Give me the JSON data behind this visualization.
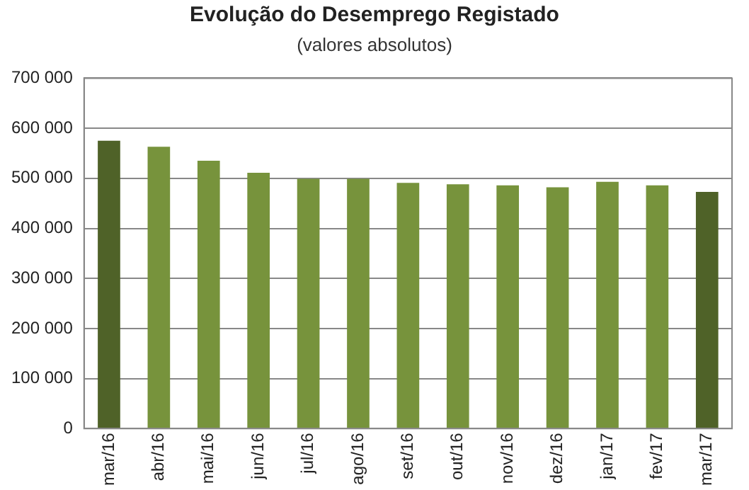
{
  "chart_data": {
    "type": "bar",
    "title": "Evolução do Desemprego Registado",
    "subtitle": "(valores absolutos)",
    "categories": [
      "mar/16",
      "abr/16",
      "mai/16",
      "jun/16",
      "jul/16",
      "ago/16",
      "set/16",
      "out/16",
      "nov/16",
      "dez/16",
      "jan/17",
      "fev/17",
      "mar/17"
    ],
    "values": [
      575000,
      563000,
      535000,
      511000,
      499000,
      499000,
      491000,
      488000,
      486000,
      482000,
      493000,
      486000,
      473000
    ],
    "colors": [
      "#4f6228",
      "#77933c",
      "#77933c",
      "#77933c",
      "#77933c",
      "#77933c",
      "#77933c",
      "#77933c",
      "#77933c",
      "#77933c",
      "#77933c",
      "#77933c",
      "#4f6228"
    ],
    "ylim": [
      0,
      700000
    ],
    "yticks": [
      {
        "value": 0,
        "label": "0"
      },
      {
        "value": 100000,
        "label": "100 000"
      },
      {
        "value": 200000,
        "label": "200 000"
      },
      {
        "value": 300000,
        "label": "300 000"
      },
      {
        "value": 400000,
        "label": "400 000"
      },
      {
        "value": 500000,
        "label": "500 000"
      },
      {
        "value": 600000,
        "label": "600 000"
      },
      {
        "value": 700000,
        "label": "700 000"
      }
    ],
    "grid": "y",
    "legend": false
  }
}
